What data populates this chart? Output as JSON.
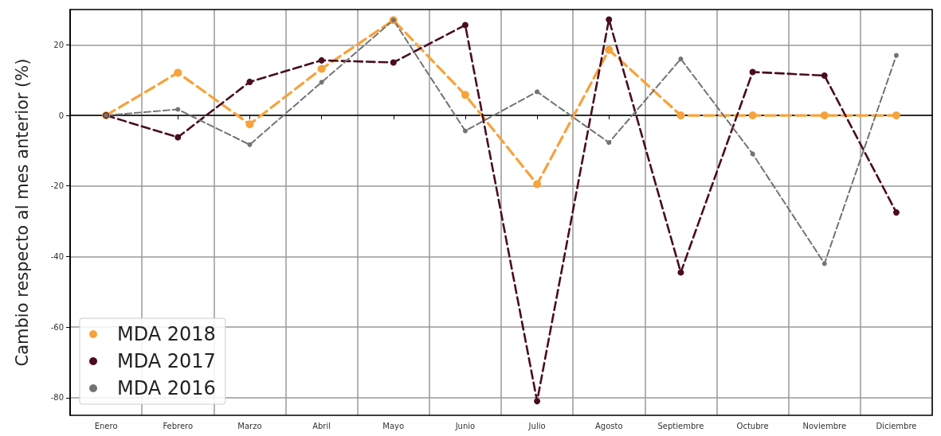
{
  "chart_data": {
    "type": "line",
    "ylabel": "Cambio respecto al mes anterior (%)",
    "categories": [
      "Enero",
      "Febrero",
      "Marzo",
      "Abril",
      "Mayo",
      "Junio",
      "Julio",
      "Agosto",
      "Septiembre",
      "Octubre",
      "Noviembre",
      "Diciembre"
    ],
    "series": [
      {
        "name": "MDA 2018",
        "color": "#f7a23a",
        "values": [
          0,
          12.1,
          -2.5,
          13.2,
          27,
          5.8,
          -19.5,
          18.6,
          0,
          0,
          0,
          0
        ]
      },
      {
        "name": "MDA 2017",
        "color": "#4a0c22",
        "values": [
          0,
          -6.2,
          9.5,
          15.6,
          15,
          25.6,
          -81,
          27.2,
          -44.5,
          12.3,
          11.3,
          -27.5
        ]
      },
      {
        "name": "MDA 2016",
        "color": "#737373",
        "values": [
          0,
          1.7,
          -8.3,
          9.4,
          27,
          -4.4,
          6.7,
          -7.7,
          16,
          -10.9,
          -42,
          17
        ]
      }
    ],
    "ylim": [
      -85,
      30
    ],
    "yticks": [
      -80,
      -60,
      -40,
      -20,
      0,
      20
    ],
    "grid": true,
    "legend": "bottom left",
    "marker": "circle",
    "line_style": "dashed"
  }
}
